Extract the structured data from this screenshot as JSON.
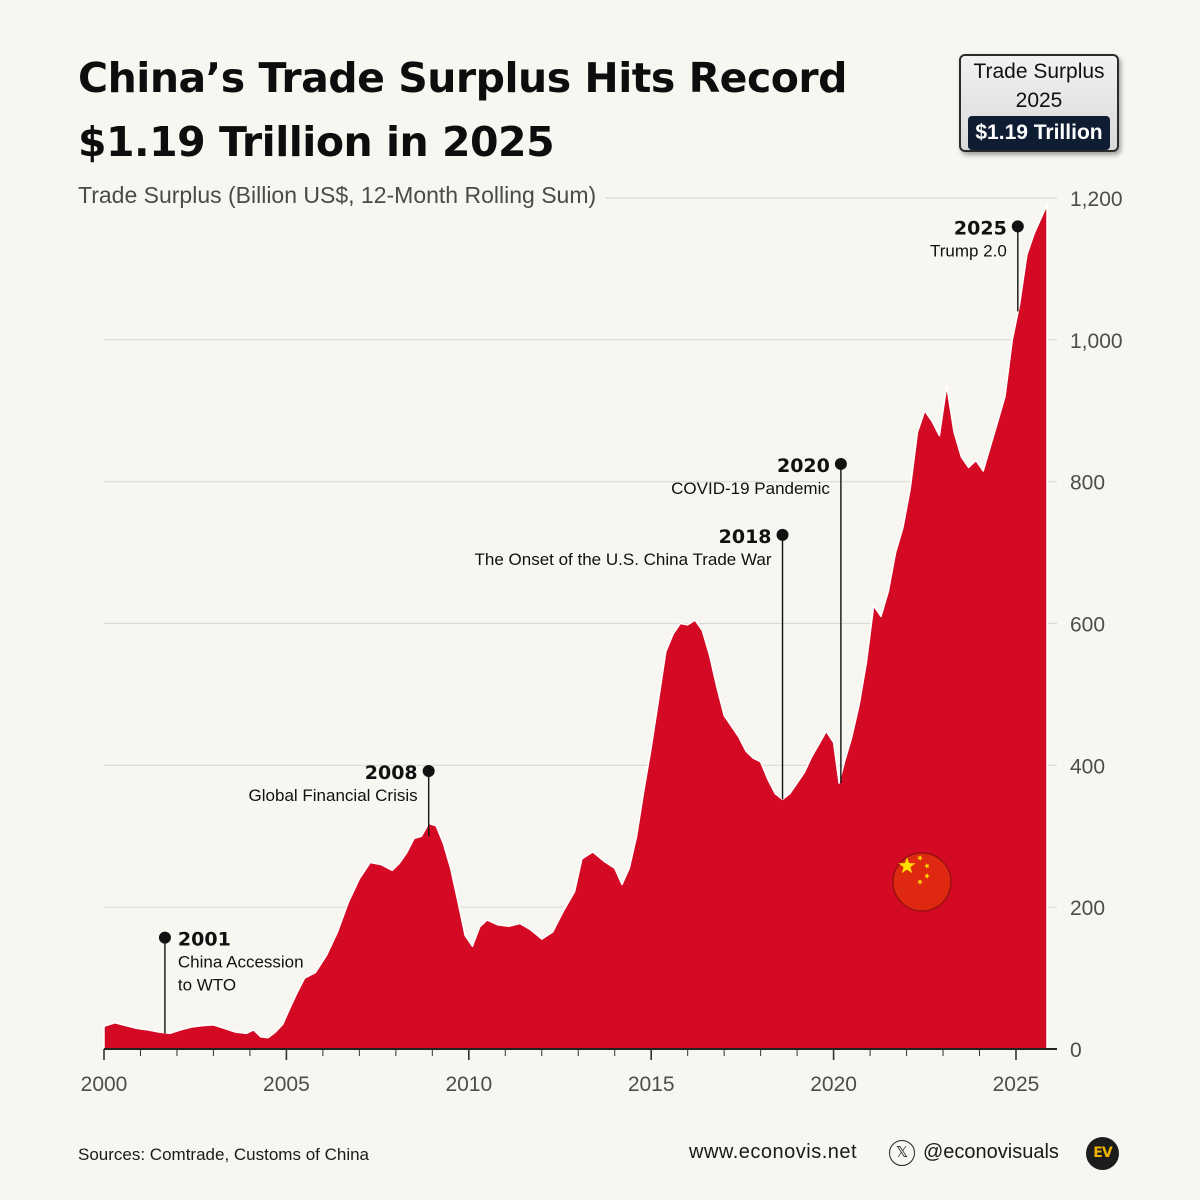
{
  "title": {
    "line1": "China’s Trade Surplus Hits Record",
    "line2": "$1.19 Trillion in 2025"
  },
  "badge": {
    "line1": "Trade Surplus",
    "line2": "2025",
    "value": "$1.19 Trillion"
  },
  "colors": {
    "area": "#d40a24",
    "background": "#f8f6f1",
    "badge_value_bg": "#0f1d33",
    "flag_red": "#de2910",
    "flag_star": "#ffde00"
  },
  "chart_data": {
    "type": "area",
    "title": "",
    "ylabel": "Trade Surplus (Billion US$, 12-Month Rolling Sum)",
    "xlabel": "",
    "xlim": [
      2000,
      2025.85
    ],
    "ylim": [
      0,
      1200
    ],
    "xticks": [
      2000,
      2005,
      2010,
      2015,
      2020,
      2025
    ],
    "yticks": [
      0,
      200,
      400,
      600,
      800,
      1000,
      1200
    ],
    "ytick_labels": [
      "0",
      "200",
      "400",
      "600",
      "800",
      "1,000",
      "1,200"
    ],
    "y_axis_side": "right",
    "grid": "horizontal",
    "series": [
      {
        "x": [
          2000.0,
          2000.3,
          2000.6,
          2000.9,
          2001.2,
          2001.5,
          2001.8,
          2002.1,
          2002.4,
          2002.7,
          2003.0,
          2003.3,
          2003.6,
          2003.9,
          2004.1,
          2004.3,
          2004.5,
          2004.7,
          2004.9,
          2005.1,
          2005.3,
          2005.5,
          2005.8,
          2006.1,
          2006.4,
          2006.7,
          2007.0,
          2007.3,
          2007.6,
          2007.9,
          2008.1,
          2008.3,
          2008.5,
          2008.7,
          2008.9,
          2009.1,
          2009.3,
          2009.5,
          2009.7,
          2009.9,
          2010.1,
          2010.3,
          2010.5,
          2010.8,
          2011.1,
          2011.4,
          2011.7,
          2012.0,
          2012.3,
          2012.6,
          2012.9,
          2013.1,
          2013.4,
          2013.7,
          2014.0,
          2014.2,
          2014.4,
          2014.6,
          2014.8,
          2015.0,
          2015.2,
          2015.4,
          2015.6,
          2015.8,
          2016.0,
          2016.2,
          2016.4,
          2016.6,
          2016.8,
          2017.0,
          2017.2,
          2017.4,
          2017.6,
          2017.8,
          2018.0,
          2018.2,
          2018.4,
          2018.6,
          2018.8,
          2019.0,
          2019.2,
          2019.4,
          2019.6,
          2019.8,
          2020.0,
          2020.15,
          2020.3,
          2020.5,
          2020.7,
          2020.9,
          2021.1,
          2021.3,
          2021.5,
          2021.7,
          2021.9,
          2022.1,
          2022.3,
          2022.5,
          2022.7,
          2022.9,
          2023.1,
          2023.3,
          2023.5,
          2023.7,
          2023.9,
          2024.1,
          2024.3,
          2024.5,
          2024.7,
          2024.9,
          2025.1,
          2025.3,
          2025.5,
          2025.85
        ],
        "values": [
          32,
          37,
          33,
          29,
          27,
          24,
          22,
          27,
          31,
          33,
          34,
          29,
          24,
          22,
          27,
          17,
          16,
          24,
          35,
          58,
          80,
          100,
          108,
          132,
          165,
          207,
          240,
          263,
          260,
          252,
          262,
          277,
          297,
          300,
          318,
          315,
          290,
          255,
          208,
          160,
          145,
          172,
          182,
          175,
          173,
          177,
          168,
          155,
          165,
          195,
          222,
          268,
          278,
          265,
          255,
          232,
          255,
          300,
          365,
          425,
          492,
          560,
          585,
          600,
          598,
          605,
          590,
          555,
          510,
          470,
          455,
          440,
          420,
          410,
          405,
          380,
          360,
          352,
          360,
          375,
          390,
          412,
          430,
          448,
          432,
          375,
          405,
          440,
          485,
          545,
          625,
          610,
          645,
          700,
          735,
          790,
          870,
          900,
          885,
          865,
          935,
          870,
          835,
          820,
          830,
          815,
          850,
          885,
          920,
          1000,
          1050,
          1120,
          1150,
          1190
        ]
      }
    ],
    "annotations": [
      {
        "year": "2001",
        "text": "China Accession to WTO",
        "text_lines": [
          "China Accession",
          "to WTO"
        ],
        "x": 2001.67,
        "y": 22,
        "dot_y": 157
      },
      {
        "year": "2008",
        "text": "Global Financial Crisis",
        "text_lines": [
          "Global Financial Crisis"
        ],
        "x": 2008.9,
        "y": 300,
        "dot_y": 392
      },
      {
        "year": "2018",
        "text": "The Onset of the U.S. China Trade War",
        "text_lines": [
          "The Onset of the U.S. China Trade War"
        ],
        "x": 2018.6,
        "y": 352,
        "dot_y": 725
      },
      {
        "year": "2020",
        "text": "COVID-19 Pandemic",
        "text_lines": [
          "COVID-19 Pandemic"
        ],
        "x": 2020.2,
        "y": 375,
        "dot_y": 825
      },
      {
        "year": "2025",
        "text": "Trump 2.0",
        "text_lines": [
          "Trump 2.0"
        ],
        "x": 2025.05,
        "y": 1040,
        "dot_y": 1160
      }
    ]
  },
  "footer": {
    "sources": "Sources: Comtrade, Customs of China",
    "website": "www.econovis.net",
    "x_icon_glyph": "𝕏",
    "handle": "@econovisuals",
    "logo_text": "EV"
  },
  "icons": {
    "flag": "china-flag-icon",
    "social": "x-logo-icon",
    "brand": "econovis-logo-icon"
  }
}
